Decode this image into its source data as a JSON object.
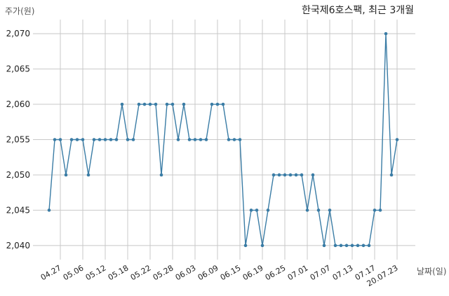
{
  "chart_data": {
    "type": "line",
    "title": "한국제6호스팩, 최근 3개월",
    "ylabel": "주가(원)",
    "xlabel": "날짜(일)",
    "ylim": [
      2038,
      2072
    ],
    "yticks": [
      2040,
      2045,
      2050,
      2055,
      2060,
      2065,
      2070
    ],
    "ytick_labels": [
      "2,040",
      "2,045",
      "2,050",
      "2,055",
      "2,060",
      "2,065",
      "2,070"
    ],
    "xticks": [
      {
        "index": 2,
        "label": "04.27"
      },
      {
        "index": 6,
        "label": "05.06"
      },
      {
        "index": 10,
        "label": "05.12"
      },
      {
        "index": 14,
        "label": "05.18"
      },
      {
        "index": 18,
        "label": "05.22"
      },
      {
        "index": 22,
        "label": "05.28"
      },
      {
        "index": 26,
        "label": "06.03"
      },
      {
        "index": 30,
        "label": "06.09"
      },
      {
        "index": 34,
        "label": "06.15"
      },
      {
        "index": 38,
        "label": "06.19"
      },
      {
        "index": 42,
        "label": "06.25"
      },
      {
        "index": 46,
        "label": "07.01"
      },
      {
        "index": 50,
        "label": "07.07"
      },
      {
        "index": 54,
        "label": "07.13"
      },
      {
        "index": 58,
        "label": "07.17"
      },
      {
        "index": 62,
        "label": "20.07.23"
      }
    ],
    "grid": true,
    "line_color": "#3a7ca5",
    "series": [
      {
        "values": [
          2045,
          2055,
          2055,
          2050,
          2055,
          2055,
          2055,
          2050,
          2055,
          2055,
          2055,
          2055,
          2055,
          2060,
          2055,
          2055,
          2060,
          2060,
          2060,
          2060,
          2050,
          2060,
          2060,
          2055,
          2060,
          2055,
          2055,
          2055,
          2055,
          2060,
          2060,
          2060,
          2055,
          2055,
          2055,
          2040,
          2045,
          2045,
          2040,
          2045,
          2050,
          2050,
          2050,
          2050,
          2050,
          2050,
          2045,
          2050,
          2045,
          2040,
          2045,
          2040,
          2040,
          2040,
          2040,
          2040,
          2040,
          2040,
          2045,
          2045,
          2070,
          2050,
          2055
        ]
      }
    ]
  }
}
